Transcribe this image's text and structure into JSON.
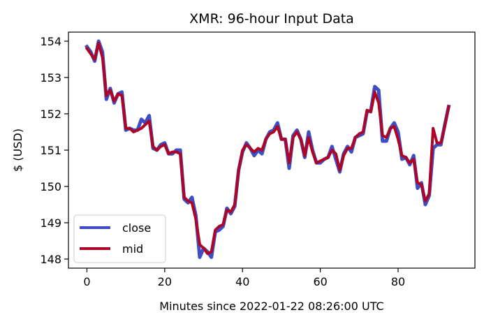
{
  "chart_data": {
    "type": "line",
    "title": "XMR: 96-hour Input Data",
    "xlabel": "Minutes since 2022-01-22 08:26:00 UTC",
    "ylabel": "$ (USD)",
    "xlim": [
      -4.75,
      99.75
    ],
    "ylim": [
      147.75,
      154.25
    ],
    "xticks": [
      0,
      20,
      40,
      60,
      80
    ],
    "yticks": [
      148,
      149,
      150,
      151,
      152,
      153,
      154
    ],
    "grid": false,
    "legend": "lower-left",
    "series": [
      {
        "name": "close",
        "color": "#3f4ec4",
        "values": [
          153.85,
          153.7,
          153.45,
          154.0,
          153.7,
          152.4,
          152.7,
          152.3,
          152.55,
          152.6,
          151.55,
          151.6,
          151.55,
          151.55,
          151.85,
          151.75,
          151.95,
          151.05,
          151.0,
          151.15,
          151.2,
          150.9,
          150.9,
          151.0,
          151.0,
          149.65,
          149.55,
          149.7,
          149.2,
          148.05,
          148.3,
          148.2,
          148.05,
          148.75,
          148.8,
          148.9,
          149.4,
          149.25,
          149.45,
          150.45,
          150.95,
          151.2,
          151.05,
          150.85,
          151.0,
          150.9,
          151.3,
          151.5,
          151.55,
          151.75,
          151.3,
          151.3,
          150.5,
          151.4,
          151.55,
          151.3,
          150.8,
          151.5,
          151.0,
          150.65,
          150.65,
          150.75,
          150.8,
          151.1,
          150.75,
          150.4,
          150.9,
          151.1,
          150.95,
          151.35,
          151.4,
          151.45,
          152.05,
          152.1,
          152.75,
          152.65,
          151.25,
          151.25,
          151.6,
          151.75,
          151.5,
          150.75,
          150.8,
          150.6,
          150.85,
          149.95,
          150.1,
          149.5,
          149.75,
          151.05,
          151.15,
          151.15,
          151.7,
          152.2
        ]
      },
      {
        "name": "mid",
        "color": "#ad0525",
        "values": [
          153.8,
          153.65,
          153.5,
          153.95,
          153.55,
          152.5,
          152.65,
          152.35,
          152.55,
          152.5,
          151.6,
          151.6,
          151.5,
          151.55,
          151.6,
          151.7,
          151.8,
          151.1,
          151.0,
          151.1,
          151.15,
          150.9,
          150.95,
          150.95,
          150.9,
          149.7,
          149.6,
          149.55,
          149.1,
          148.4,
          148.3,
          148.15,
          148.2,
          148.8,
          148.9,
          148.95,
          149.35,
          149.3,
          149.5,
          150.45,
          151.0,
          151.15,
          151.05,
          150.95,
          151.05,
          151.0,
          151.3,
          151.45,
          151.5,
          151.65,
          151.3,
          151.3,
          150.65,
          151.35,
          151.5,
          151.3,
          150.85,
          151.35,
          150.95,
          150.65,
          150.7,
          150.75,
          150.8,
          151.0,
          150.9,
          150.45,
          150.85,
          151.05,
          151.05,
          151.35,
          151.45,
          151.5,
          152.1,
          152.05,
          152.6,
          152.3,
          151.4,
          151.35,
          151.6,
          151.65,
          151.3,
          150.85,
          150.8,
          150.65,
          150.75,
          150.1,
          150.05,
          149.6,
          149.8,
          151.6,
          151.2,
          151.2,
          151.65,
          152.2
        ]
      }
    ]
  }
}
